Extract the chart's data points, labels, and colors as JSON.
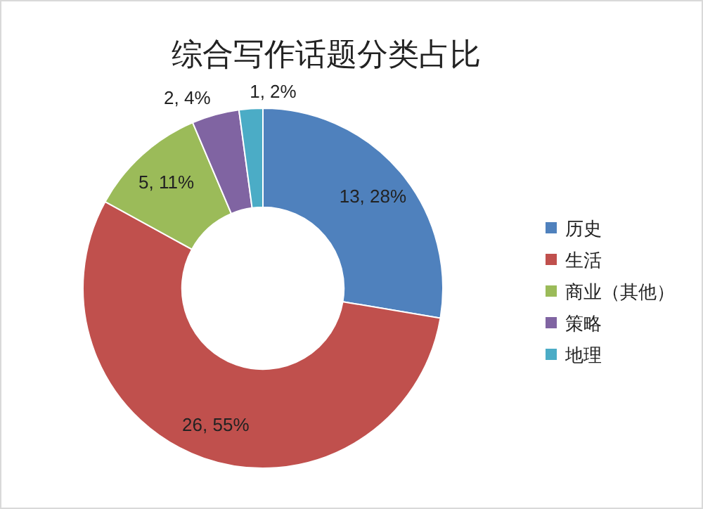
{
  "chart_data": {
    "type": "donut",
    "title": "综合写作话题分类占比",
    "categories": [
      "历史",
      "生活",
      "商业（其他）",
      "策略",
      "地理"
    ],
    "values": [
      13,
      26,
      5,
      2,
      1
    ],
    "colors": [
      "#4f81bd",
      "#c0504d",
      "#9bbb59",
      "#8064a2",
      "#4bacc6"
    ],
    "value_labels": [
      "13, 28%",
      "26, 55%",
      "5, 11%",
      "2, 4%",
      "1, 2%"
    ],
    "legend": "right"
  }
}
